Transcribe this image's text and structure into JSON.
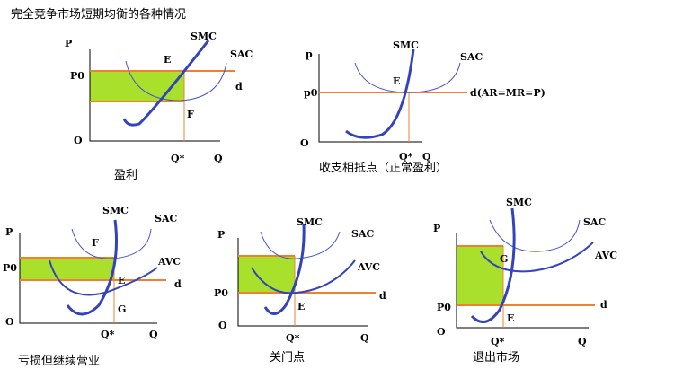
{
  "title": "完全竞争市场短期均衡的各种情况",
  "panels": [
    {
      "caption": "盈利",
      "texts": [
        "P",
        "P0",
        "O",
        "Q*",
        "Q",
        "d",
        "E",
        "SMC",
        "SAC",
        "F"
      ]
    },
    {
      "caption": "收支相抵点（正常盈利）",
      "texts": [
        "p",
        "p0",
        "O",
        "Q*",
        "Q",
        "d(AR=MR=P)",
        "E",
        "SMC",
        "SAC"
      ]
    },
    {
      "caption": "亏损但继续营业",
      "texts": [
        "P",
        "P0",
        "O",
        "Q*",
        "Q",
        "d",
        "E",
        "SMC",
        "SAC",
        "AVC",
        "F",
        "G"
      ]
    },
    {
      "caption": "关门点",
      "texts": [
        "P",
        "P0",
        "O",
        "Q*",
        "Q",
        "d",
        "E",
        "SMC",
        "SAC",
        "AVC"
      ]
    },
    {
      "caption": "退出市场",
      "texts": [
        "P",
        "P0",
        "O",
        "Q*",
        "Q",
        "d",
        "E",
        "SMC",
        "SAC",
        "AVC",
        "G"
      ]
    }
  ]
}
